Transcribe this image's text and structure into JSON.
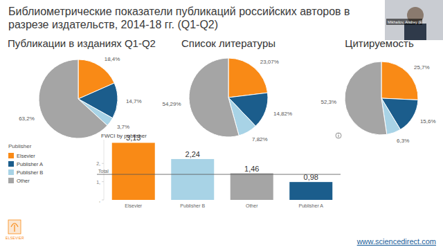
{
  "slide": {
    "title_lines": [
      "Библиометрические показатели публикаций российских авторов в",
      "разрезе издательств, 2014-18 гг. (Q1-Q2)"
    ],
    "legend_title": "Publisher",
    "footer_url": "www.sciencedirect.com",
    "logo_text": "ELSEVIER",
    "speaker": "Mikhailov, Andrey (E..."
  },
  "chart_data": [
    {
      "type": "pie",
      "title": "Публикации в изданиях Q1-Q2",
      "categories": [
        "Elsevier",
        "Publisher A",
        "Publisher B",
        "Other"
      ],
      "values": [
        18.4,
        14.7,
        3.7,
        63.2
      ],
      "value_labels": [
        "18,4%",
        "14,7%",
        "3,7%",
        "63,2%"
      ],
      "colors": [
        "#f98a16",
        "#1b5d8c",
        "#a8d3e6",
        "#a5a5a5"
      ],
      "data_labels": true
    },
    {
      "type": "pie",
      "title": "Список литературы",
      "values": [
        23.07,
        14.82,
        7.82,
        54.29
      ],
      "value_labels": [
        "23,07%",
        "14,82%",
        "7,82%",
        "54,29%"
      ],
      "colors": [
        "#f98a16",
        "#1b5d8c",
        "#a8d3e6",
        "#a5a5a5"
      ],
      "data_labels": true
    },
    {
      "type": "pie",
      "title": "Цитируемость",
      "values": [
        25.7,
        15.6,
        6.3,
        52.3
      ],
      "value_labels": [
        "25,7%",
        "15,6%",
        "6,3%",
        "52,3%"
      ],
      "colors": [
        "#f98a16",
        "#1b5d8c",
        "#a8d3e6",
        "#a5a5a5"
      ],
      "data_labels": true
    },
    {
      "type": "bar",
      "title": "FWCI by publisher",
      "categories": [
        "Elsevier",
        "Publisher B",
        "Other",
        "Publisher A"
      ],
      "values": [
        3.13,
        2.24,
        1.46,
        0.98
      ],
      "value_labels": [
        "3,13",
        "2,24",
        "1,46",
        "0,98"
      ],
      "colors": [
        "#f98a16",
        "#a8d3e6",
        "#a5a5a5",
        "#1b5d8c"
      ],
      "ylim": [
        0,
        3.3
      ],
      "yticks": [
        {
          "value": 0,
          "label": ","
        },
        {
          "value": 1,
          "label": "1,"
        },
        {
          "value": 2,
          "label": "2,"
        }
      ],
      "reference_lines": [
        {
          "value": 1.4,
          "label": "Total"
        }
      ],
      "grid": false,
      "data_labels": true
    }
  ]
}
